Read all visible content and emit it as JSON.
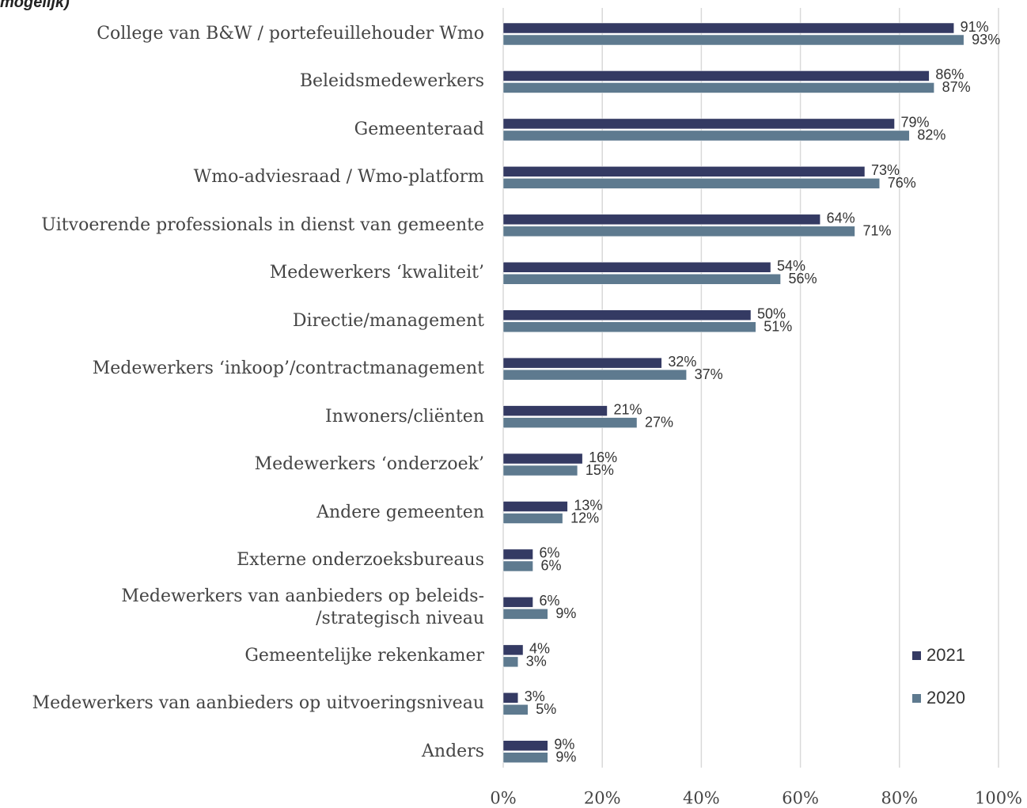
{
  "chart_data": {
    "type": "bar",
    "orientation": "horizontal",
    "title": "mogelijk)",
    "categories": [
      "College van B&W / portefeuillehouder Wmo",
      "Beleidsmedewerkers",
      "Gemeenteraad",
      "Wmo-adviesraad / Wmo-platform",
      "Uitvoerende professionals in dienst van gemeente",
      "Medewerkers ‘kwaliteit’",
      "Directie/management",
      "Medewerkers ‘inkoop’/contractmanagement",
      "Inwoners/cliënten",
      "Medewerkers ‘onderzoek’",
      "Andere gemeenten",
      "Externe onderzoeksbureaus",
      "Medewerkers van aanbieders op beleids-\n/strategisch niveau",
      "Gemeentelijke rekenkamer",
      "Medewerkers van aanbieders op uitvoeringsniveau",
      "Anders"
    ],
    "series": [
      {
        "name": "2021",
        "color": "#343a63",
        "values": [
          91,
          86,
          79,
          73,
          64,
          54,
          50,
          32,
          21,
          16,
          13,
          6,
          6,
          4,
          3,
          9
        ],
        "value_labels": [
          "91%",
          "86%",
          "79%",
          "73%",
          "64%",
          "54%",
          "50%",
          "32%",
          "21%",
          "16%",
          "13%",
          "6%",
          "6%",
          "4%",
          "3%",
          "9%"
        ]
      },
      {
        "name": "2020",
        "color": "#5e7a8f",
        "values": [
          93,
          87,
          82,
          76,
          71,
          56,
          51,
          37,
          27,
          15,
          12,
          6,
          9,
          3,
          5,
          9
        ],
        "value_labels": [
          "93%",
          "87%",
          "82%",
          "76%",
          "71%",
          "56%",
          "51%",
          "37%",
          "27%",
          "15%",
          "12%",
          "6%",
          "9%",
          "3%",
          "5%",
          "9%"
        ]
      }
    ],
    "xlim": [
      0,
      100
    ],
    "xticks": [
      {
        "value": 0,
        "label": "0%"
      },
      {
        "value": 20,
        "label": "20%"
      },
      {
        "value": 40,
        "label": "40%"
      },
      {
        "value": 60,
        "label": "60%"
      },
      {
        "value": 80,
        "label": "80%"
      },
      {
        "value": 100,
        "label": "100%"
      }
    ],
    "grid": true,
    "legend": "lower right"
  }
}
